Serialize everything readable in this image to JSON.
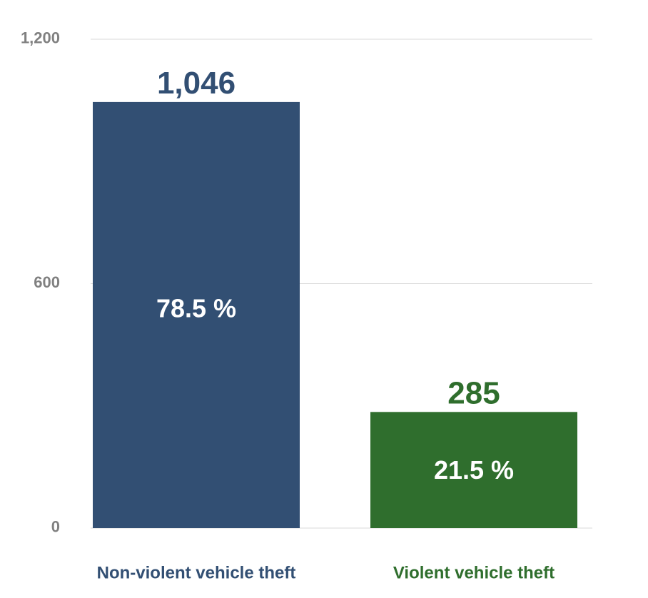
{
  "chart_data": {
    "type": "bar",
    "categories": [
      "Non-violent vehicle theft",
      "Violent vehicle theft"
    ],
    "values": [
      1046,
      285
    ],
    "value_labels": [
      "1,046",
      "285"
    ],
    "percent_labels": [
      "78.5 %",
      "21.5 %"
    ],
    "colors": [
      "#324f73",
      "#2f6e2d"
    ],
    "ylim": [
      0,
      1200
    ],
    "yticks": [
      0,
      600,
      1200
    ],
    "ytick_labels": [
      "0",
      "600",
      "1,200"
    ],
    "grid": true,
    "title": "",
    "xlabel": "",
    "ylabel": ""
  }
}
